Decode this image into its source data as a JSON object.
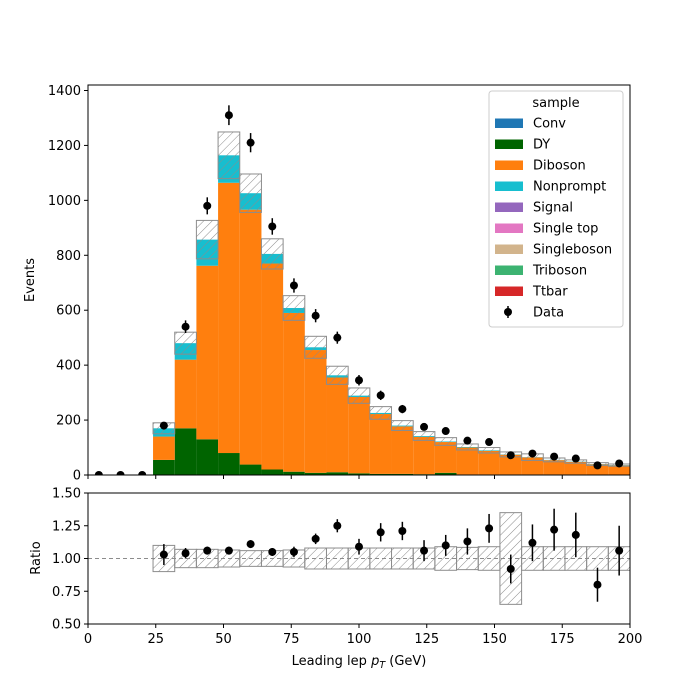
{
  "chart_data": [
    {
      "type": "bar",
      "stacked": true,
      "xlabel": "Leading lep $p_T$ (GeV)",
      "ylabel": "Events",
      "xlim": [
        0,
        200
      ],
      "ylim": [
        0,
        1420
      ],
      "x_ticks": [
        "0",
        "25",
        "50",
        "75",
        "100",
        "125",
        "150",
        "175",
        "200"
      ],
      "y_ticks": [
        "0",
        "200",
        "400",
        "600",
        "800",
        "1000",
        "1200",
        "1400"
      ],
      "bin_edges": [
        0,
        8,
        16,
        24,
        32,
        40,
        48,
        56,
        64,
        72,
        80,
        88,
        96,
        104,
        112,
        120,
        128,
        136,
        144,
        152,
        160,
        168,
        176,
        184,
        192,
        200
      ],
      "legend": {
        "title": "sample",
        "placement": "top-right",
        "entries": [
          "Conv",
          "DY",
          "Diboson",
          "Nonprompt",
          "Signal",
          "Single top",
          "Singleboson",
          "Triboson",
          "Ttbar",
          "Data"
        ]
      },
      "colors": {
        "Conv": "#1f77b4",
        "DY": "#006400",
        "Diboson": "#ff7f0e",
        "Nonprompt": "#17becf",
        "Signal": "#9467bd",
        "Single top": "#e377c2",
        "Singleboson": "#d2b48c",
        "Triboson": "#3cb371",
        "Ttbar": "#d62728",
        "Data": "#000000"
      },
      "series": [
        {
          "name": "DY",
          "values": [
            0,
            0,
            0,
            55,
            170,
            130,
            80,
            38,
            20,
            12,
            8,
            10,
            6,
            4,
            4,
            3,
            8,
            2,
            2,
            2,
            2,
            2,
            2,
            1,
            1
          ]
        },
        {
          "name": "Diboson",
          "values": [
            0,
            0,
            0,
            85,
            250,
            632,
            984,
            928,
            750,
            578,
            447,
            345,
            278,
            218,
            173,
            136,
            112,
            98,
            86,
            72,
            62,
            52,
            46,
            38,
            34
          ]
        },
        {
          "name": "Nonprompt",
          "values": [
            0,
            0,
            0,
            30,
            60,
            95,
            100,
            60,
            35,
            18,
            10,
            8,
            5,
            4,
            3,
            3,
            2,
            2,
            2,
            1,
            1,
            1,
            1,
            1,
            1
          ]
        },
        {
          "name": "Conv",
          "values": [
            0,
            0,
            0,
            0,
            0,
            0,
            0,
            0,
            0,
            0,
            0,
            0,
            0,
            0,
            0,
            0,
            0,
            0,
            0,
            0,
            0,
            0,
            0,
            0,
            0
          ]
        },
        {
          "name": "Signal",
          "values": [
            0,
            0,
            0,
            0,
            0,
            0,
            0,
            0,
            0,
            0,
            0,
            0,
            0,
            0,
            0,
            0,
            0,
            0,
            0,
            0,
            0,
            0,
            0,
            0,
            0
          ]
        },
        {
          "name": "Single top",
          "values": [
            0,
            0,
            0,
            0,
            0,
            0,
            0,
            0,
            0,
            0,
            0,
            0,
            0,
            0,
            0,
            0,
            0,
            0,
            0,
            0,
            0,
            0,
            0,
            0,
            0
          ]
        },
        {
          "name": "Singleboson",
          "values": [
            0,
            0,
            0,
            0,
            0,
            0,
            0,
            0,
            0,
            0,
            0,
            0,
            0,
            0,
            0,
            0,
            0,
            0,
            0,
            0,
            0,
            0,
            0,
            0,
            0
          ]
        },
        {
          "name": "Triboson",
          "values": [
            0,
            0,
            0,
            0,
            0,
            0,
            0,
            0,
            0,
            0,
            0,
            0,
            0,
            0,
            0,
            0,
            0,
            0,
            0,
            0,
            0,
            0,
            0,
            0,
            0
          ]
        },
        {
          "name": "Ttbar",
          "values": [
            0,
            0,
            0,
            0,
            0,
            0,
            0,
            0,
            0,
            0,
            0,
            0,
            0,
            0,
            0,
            0,
            0,
            0,
            0,
            0,
            0,
            0,
            0,
            0,
            0
          ]
        }
      ],
      "mc_total_uncertainty": [
        0,
        0,
        0,
        20,
        40,
        70,
        85,
        70,
        55,
        45,
        40,
        33,
        28,
        23,
        18,
        16,
        14,
        11,
        10,
        9,
        12,
        7,
        6,
        5,
        4
      ],
      "data": {
        "name": "Data",
        "x": [
          4,
          12,
          20,
          28,
          36,
          44,
          52,
          60,
          68,
          76,
          84,
          92,
          100,
          108,
          116,
          124,
          132,
          140,
          148,
          156,
          164,
          172,
          180,
          188,
          196
        ],
        "y": [
          0,
          0,
          0,
          180,
          540,
          980,
          1310,
          1210,
          905,
          690,
          580,
          500,
          345,
          290,
          240,
          175,
          160,
          125,
          120,
          72,
          78,
          67,
          60,
          35,
          42
        ],
        "yerr": [
          0,
          0,
          0,
          13,
          23,
          31,
          36,
          35,
          30,
          26,
          24,
          22,
          19,
          17,
          15,
          13,
          13,
          11,
          11,
          8,
          9,
          8,
          8,
          6,
          6
        ]
      }
    },
    {
      "type": "scatter",
      "xlabel": "Leading lep $p_T$ (GeV)",
      "ylabel": "Ratio",
      "xlim": [
        0,
        200
      ],
      "ylim": [
        0.5,
        1.5
      ],
      "x_ticks": [
        "0",
        "25",
        "50",
        "75",
        "100",
        "125",
        "150",
        "175",
        "200"
      ],
      "y_ticks": [
        "0.50",
        "0.75",
        "1.00",
        "1.25",
        "1.50"
      ],
      "reference_line": 1.0,
      "uncertainty_band": [
        0,
        0,
        0,
        0.1,
        0.07,
        0.07,
        0.065,
        0.06,
        0.06,
        0.065,
        0.08,
        0.08,
        0.08,
        0.08,
        0.08,
        0.08,
        0.09,
        0.085,
        0.09,
        0.35,
        0.09,
        0.09,
        0.09,
        0.09,
        0.09
      ],
      "points": {
        "x": [
          28,
          36,
          44,
          52,
          60,
          68,
          76,
          84,
          92,
          100,
          108,
          116,
          124,
          132,
          140,
          148,
          156,
          164,
          172,
          180,
          188,
          196
        ],
        "y": [
          1.03,
          1.04,
          1.06,
          1.06,
          1.11,
          1.05,
          1.05,
          1.15,
          1.25,
          1.09,
          1.2,
          1.21,
          1.06,
          1.1,
          1.13,
          1.23,
          0.92,
          1.12,
          1.22,
          1.18,
          0.8,
          1.06
        ],
        "yerr": [
          0.08,
          0.04,
          0.03,
          0.03,
          0.03,
          0.03,
          0.04,
          0.04,
          0.05,
          0.06,
          0.07,
          0.07,
          0.08,
          0.08,
          0.1,
          0.11,
          0.11,
          0.14,
          0.16,
          0.17,
          0.13,
          0.19
        ]
      }
    }
  ]
}
